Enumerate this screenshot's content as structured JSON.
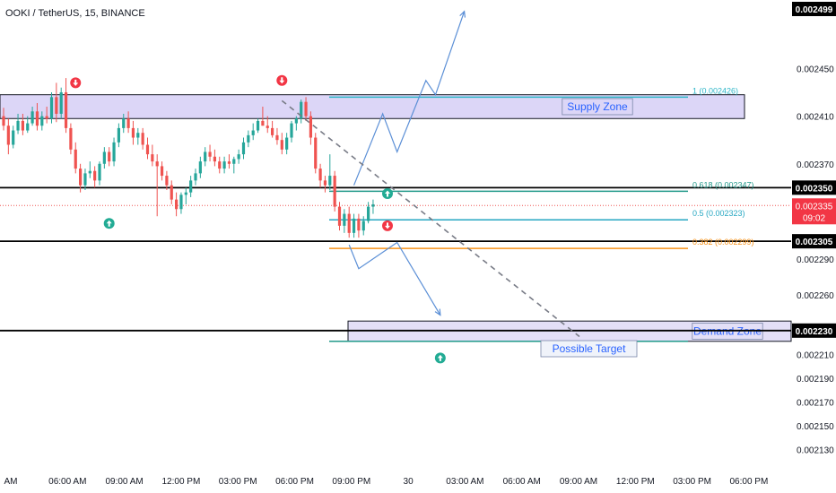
{
  "header": {
    "title": "OOKI / TetherUS, 15, BINANCE"
  },
  "colors": {
    "up": "#26a69a",
    "down": "#ef5350",
    "supply_fill": "#dcd6f7",
    "demand_fill": "#e3dff7",
    "arrow": "#5b8fd6",
    "fib_06": "#22998a",
    "fib_05": "#26a7c2",
    "fib_0382": "#f7931a",
    "fib_1": "#2eb6c8",
    "badge_black": "#000000",
    "badge_red": "#f23645",
    "label_blue": "#2962ff"
  },
  "chart_data": {
    "type": "candlestick",
    "ylim": [
      0.00212,
      0.0025
    ],
    "y_ticks": [
      "0.002450",
      "0.002410",
      "0.002370",
      "0.002290",
      "0.002260",
      "0.002210",
      "0.002190",
      "0.002170",
      "0.002150",
      "0.002130"
    ],
    "x_ticks": [
      "AM",
      "06:00 AM",
      "09:00 AM",
      "12:00 PM",
      "03:00 PM",
      "06:00 PM",
      "09:00 PM",
      "30",
      "03:00 AM",
      "06:00 AM",
      "09:00 AM",
      "12:00 PM",
      "03:00 PM",
      "06:00 PM"
    ],
    "candles": [
      {
        "o": 0.00241,
        "h": 0.002417,
        "l": 0.002398,
        "c": 0.002402
      },
      {
        "o": 0.002402,
        "h": 0.002408,
        "l": 0.002378,
        "c": 0.002386
      },
      {
        "o": 0.002386,
        "h": 0.002402,
        "l": 0.002383,
        "c": 0.002398
      },
      {
        "o": 0.002398,
        "h": 0.002412,
        "l": 0.002395,
        "c": 0.002406
      },
      {
        "o": 0.002406,
        "h": 0.002412,
        "l": 0.002394,
        "c": 0.002398
      },
      {
        "o": 0.002398,
        "h": 0.00241,
        "l": 0.002396,
        "c": 0.002404
      },
      {
        "o": 0.002404,
        "h": 0.002418,
        "l": 0.002402,
        "c": 0.002414
      },
      {
        "o": 0.002414,
        "h": 0.002421,
        "l": 0.002398,
        "c": 0.002402
      },
      {
        "o": 0.002402,
        "h": 0.002414,
        "l": 0.002398,
        "c": 0.00241
      },
      {
        "o": 0.00241,
        "h": 0.002418,
        "l": 0.002404,
        "c": 0.002408
      },
      {
        "o": 0.002408,
        "h": 0.00243,
        "l": 0.002404,
        "c": 0.002426
      },
      {
        "o": 0.002426,
        "h": 0.002438,
        "l": 0.002405,
        "c": 0.002412
      },
      {
        "o": 0.002412,
        "h": 0.002434,
        "l": 0.002408,
        "c": 0.00243
      },
      {
        "o": 0.00243,
        "h": 0.002442,
        "l": 0.002396,
        "c": 0.0024
      },
      {
        "o": 0.0024,
        "h": 0.002404,
        "l": 0.002378,
        "c": 0.002382
      },
      {
        "o": 0.002382,
        "h": 0.002388,
        "l": 0.002362,
        "c": 0.002366
      },
      {
        "o": 0.002366,
        "h": 0.00237,
        "l": 0.002346,
        "c": 0.002352
      },
      {
        "o": 0.002352,
        "h": 0.002366,
        "l": 0.002348,
        "c": 0.002362
      },
      {
        "o": 0.002362,
        "h": 0.002372,
        "l": 0.002358,
        "c": 0.002364
      },
      {
        "o": 0.002364,
        "h": 0.002368,
        "l": 0.00235,
        "c": 0.002356
      },
      {
        "o": 0.002356,
        "h": 0.002372,
        "l": 0.002352,
        "c": 0.00237
      },
      {
        "o": 0.00237,
        "h": 0.002384,
        "l": 0.002366,
        "c": 0.00238
      },
      {
        "o": 0.00238,
        "h": 0.002384,
        "l": 0.002368,
        "c": 0.002372
      },
      {
        "o": 0.002372,
        "h": 0.002392,
        "l": 0.002368,
        "c": 0.002388
      },
      {
        "o": 0.002388,
        "h": 0.002404,
        "l": 0.002384,
        "c": 0.0024
      },
      {
        "o": 0.0024,
        "h": 0.002412,
        "l": 0.002396,
        "c": 0.002408
      },
      {
        "o": 0.002408,
        "h": 0.002414,
        "l": 0.002396,
        "c": 0.0024
      },
      {
        "o": 0.0024,
        "h": 0.002406,
        "l": 0.002386,
        "c": 0.002392
      },
      {
        "o": 0.002392,
        "h": 0.0024,
        "l": 0.002386,
        "c": 0.002396
      },
      {
        "o": 0.002396,
        "h": 0.0024,
        "l": 0.002382,
        "c": 0.002386
      },
      {
        "o": 0.002386,
        "h": 0.002392,
        "l": 0.002374,
        "c": 0.002378
      },
      {
        "o": 0.002378,
        "h": 0.002386,
        "l": 0.002368,
        "c": 0.002372
      },
      {
        "o": 0.002372,
        "h": 0.002378,
        "l": 0.002326,
        "c": 0.002368
      },
      {
        "o": 0.002368,
        "h": 0.002372,
        "l": 0.002356,
        "c": 0.00236
      },
      {
        "o": 0.00236,
        "h": 0.002364,
        "l": 0.002348,
        "c": 0.002352
      },
      {
        "o": 0.002352,
        "h": 0.002356,
        "l": 0.002336,
        "c": 0.00234
      },
      {
        "o": 0.00234,
        "h": 0.002346,
        "l": 0.002326,
        "c": 0.002332
      },
      {
        "o": 0.002332,
        "h": 0.002346,
        "l": 0.002328,
        "c": 0.002344
      },
      {
        "o": 0.002344,
        "h": 0.00235,
        "l": 0.002336,
        "c": 0.002346
      },
      {
        "o": 0.002346,
        "h": 0.00236,
        "l": 0.002342,
        "c": 0.002356
      },
      {
        "o": 0.002356,
        "h": 0.002366,
        "l": 0.002352,
        "c": 0.002362
      },
      {
        "o": 0.002362,
        "h": 0.002376,
        "l": 0.002358,
        "c": 0.002372
      },
      {
        "o": 0.002372,
        "h": 0.002384,
        "l": 0.002368,
        "c": 0.00238
      },
      {
        "o": 0.00238,
        "h": 0.002386,
        "l": 0.002372,
        "c": 0.002376
      },
      {
        "o": 0.002376,
        "h": 0.002382,
        "l": 0.002368,
        "c": 0.002372
      },
      {
        "o": 0.002372,
        "h": 0.002376,
        "l": 0.002362,
        "c": 0.002366
      },
      {
        "o": 0.002366,
        "h": 0.002376,
        "l": 0.002362,
        "c": 0.002372
      },
      {
        "o": 0.002372,
        "h": 0.002378,
        "l": 0.002366,
        "c": 0.00237
      },
      {
        "o": 0.00237,
        "h": 0.002376,
        "l": 0.002362,
        "c": 0.002374
      },
      {
        "o": 0.002374,
        "h": 0.002382,
        "l": 0.00237,
        "c": 0.002378
      },
      {
        "o": 0.002378,
        "h": 0.002392,
        "l": 0.002374,
        "c": 0.002388
      },
      {
        "o": 0.002388,
        "h": 0.002398,
        "l": 0.002384,
        "c": 0.002394
      },
      {
        "o": 0.002394,
        "h": 0.002404,
        "l": 0.00239,
        "c": 0.002398
      },
      {
        "o": 0.002398,
        "h": 0.002408,
        "l": 0.002396,
        "c": 0.002406
      },
      {
        "o": 0.002406,
        "h": 0.002418,
        "l": 0.002402,
        "c": 0.002402
      },
      {
        "o": 0.002402,
        "h": 0.00241,
        "l": 0.002396,
        "c": 0.0024
      },
      {
        "o": 0.0024,
        "h": 0.002406,
        "l": 0.002392,
        "c": 0.002394
      },
      {
        "o": 0.002394,
        "h": 0.0024,
        "l": 0.002386,
        "c": 0.00239
      },
      {
        "o": 0.00239,
        "h": 0.002396,
        "l": 0.002378,
        "c": 0.002382
      },
      {
        "o": 0.002382,
        "h": 0.002396,
        "l": 0.002378,
        "c": 0.002392
      },
      {
        "o": 0.002392,
        "h": 0.002406,
        "l": 0.002388,
        "c": 0.002404
      },
      {
        "o": 0.002404,
        "h": 0.00241,
        "l": 0.002398,
        "c": 0.002408
      },
      {
        "o": 0.002408,
        "h": 0.002424,
        "l": 0.002404,
        "c": 0.002422
      },
      {
        "o": 0.002422,
        "h": 0.002426,
        "l": 0.002406,
        "c": 0.00241
      },
      {
        "o": 0.00241,
        "h": 0.002414,
        "l": 0.002386,
        "c": 0.002392
      },
      {
        "o": 0.002392,
        "h": 0.002396,
        "l": 0.002362,
        "c": 0.002366
      },
      {
        "o": 0.002366,
        "h": 0.00237,
        "l": 0.00235,
        "c": 0.002356
      },
      {
        "o": 0.002356,
        "h": 0.00236,
        "l": 0.002346,
        "c": 0.002352
      },
      {
        "o": 0.002352,
        "h": 0.002378,
        "l": 0.002348,
        "c": 0.00236
      },
      {
        "o": 0.00236,
        "h": 0.002364,
        "l": 0.00233,
        "c": 0.002334
      },
      {
        "o": 0.002334,
        "h": 0.002338,
        "l": 0.002314,
        "c": 0.002318
      },
      {
        "o": 0.002318,
        "h": 0.002332,
        "l": 0.002312,
        "c": 0.002328
      },
      {
        "o": 0.002328,
        "h": 0.002334,
        "l": 0.002308,
        "c": 0.002312
      },
      {
        "o": 0.002312,
        "h": 0.002328,
        "l": 0.002308,
        "c": 0.002324
      },
      {
        "o": 0.002324,
        "h": 0.002328,
        "l": 0.002308,
        "c": 0.002314
      },
      {
        "o": 0.002314,
        "h": 0.002326,
        "l": 0.00231,
        "c": 0.002322
      },
      {
        "o": 0.002322,
        "h": 0.002338,
        "l": 0.00232,
        "c": 0.002334
      },
      {
        "o": 0.002334,
        "h": 0.00234,
        "l": 0.002328,
        "c": 0.002336
      }
    ],
    "horizontal_levels": [
      {
        "price": 0.00235,
        "label": "0.002350"
      },
      {
        "price": 0.002305,
        "label": "0.002305"
      },
      {
        "price": 0.00223,
        "label": "0.002230"
      }
    ],
    "top_badge": {
      "label": "0.002499"
    },
    "current_price": {
      "price": 0.002335,
      "label": "0.002335",
      "countdown": "09:02"
    },
    "fib_levels": [
      {
        "level": "1",
        "label": "1 (0.002426)",
        "price": 0.002426,
        "color": "#2eb6c8"
      },
      {
        "level": "0.618",
        "label": "0.618 (0.002347)",
        "price": 0.002347,
        "color": "#22998a"
      },
      {
        "level": "0.5",
        "label": "0.5 (0.002323)",
        "price": 0.002323,
        "color": "#26a7c2"
      },
      {
        "level": "0.382",
        "label": "0.382 (0.002299)",
        "price": 0.002299,
        "color": "#f7931a"
      },
      {
        "level": "0",
        "label": "",
        "price": 0.002221,
        "color": "#22998a"
      }
    ],
    "zones": [
      {
        "name": "Supply Zone",
        "top": 0.002428,
        "bottom": 0.002408
      },
      {
        "name": "Demand Zone",
        "top": 0.002238,
        "bottom": 0.002221
      }
    ],
    "annotations": [
      {
        "text": "Possible Target"
      }
    ],
    "signals": [
      {
        "type": "sell",
        "candle": 15,
        "price": 0.002438
      },
      {
        "type": "buy",
        "candle": 22,
        "price": 0.00232
      },
      {
        "type": "sell",
        "candle": 58,
        "price": 0.00244
      },
      {
        "type": "buy",
        "candle": 80,
        "price": 0.002345
      },
      {
        "type": "sell",
        "candle": 80,
        "price": 0.002318
      },
      {
        "type": "buy",
        "candle": 91,
        "price": 0.002207
      }
    ],
    "projections": {
      "up_path": [
        {
          "slot": 73,
          "price": 0.002352
        },
        {
          "slot": 79,
          "price": 0.002412
        },
        {
          "slot": 82,
          "price": 0.00238
        },
        {
          "slot": 88,
          "price": 0.00244
        },
        {
          "slot": 90,
          "price": 0.002428
        },
        {
          "slot": 96,
          "price": 0.002498
        }
      ],
      "down_path": [
        {
          "slot": 72,
          "price": 0.002302
        },
        {
          "slot": 74,
          "price": 0.002282
        },
        {
          "slot": 82,
          "price": 0.002304
        },
        {
          "slot": 91,
          "price": 0.002243
        }
      ],
      "trendline": [
        {
          "slot": 58,
          "price": 0.002423
        },
        {
          "slot": 120,
          "price": 0.002225
        }
      ]
    }
  }
}
